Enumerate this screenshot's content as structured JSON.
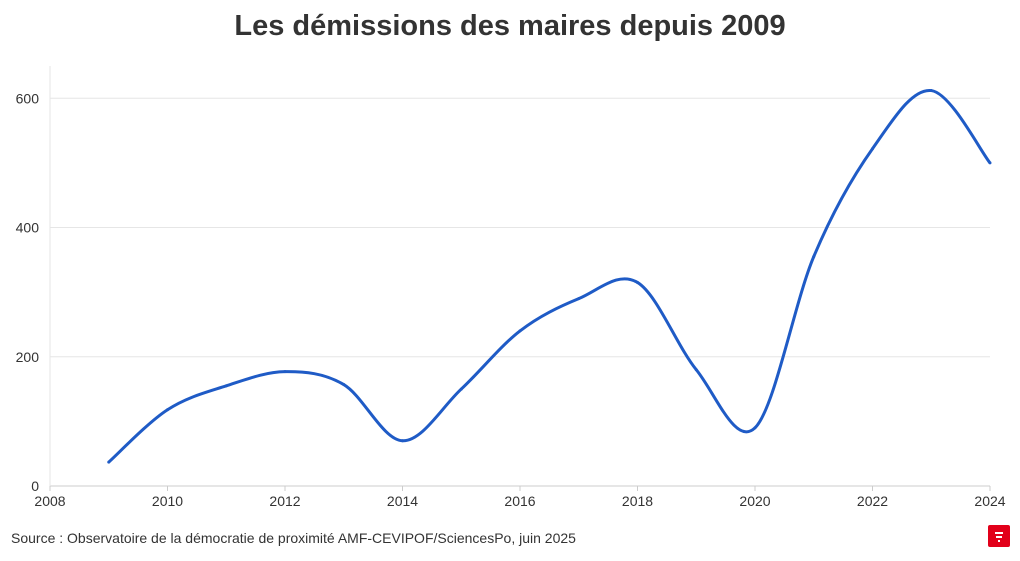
{
  "title": "Les démissions des maires depuis 2009",
  "source": "Source : Observatoire de la démocratie de proximité AMF-CEVIPOF/SciencesPo, juin 2025",
  "colors": {
    "line": "#1f5bc6",
    "logo": "#e2001a",
    "grid": "#e6e6e6",
    "axis": "#cccccc"
  },
  "chart_data": {
    "type": "line",
    "x": [
      2009,
      2010,
      2011,
      2012,
      2013,
      2014,
      2015,
      2016,
      2017,
      2018,
      2019,
      2020,
      2021,
      2022,
      2023,
      2024
    ],
    "values": [
      37,
      118,
      155,
      177,
      157,
      70,
      150,
      240,
      290,
      315,
      180,
      90,
      355,
      522,
      612,
      500
    ],
    "xlim": [
      2008,
      2024
    ],
    "ylim": [
      0,
      650
    ],
    "xticks": [
      2008,
      2010,
      2012,
      2014,
      2016,
      2018,
      2020,
      2022,
      2024
    ],
    "yticks": [
      0,
      200,
      400,
      600
    ],
    "grid": true
  }
}
